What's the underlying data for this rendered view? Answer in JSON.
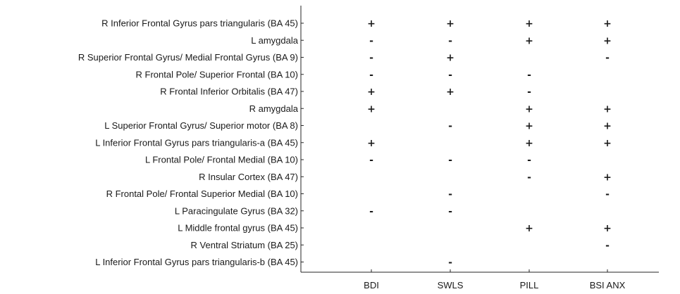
{
  "chart_data": {
    "type": "table",
    "title": "",
    "xlabel": "",
    "ylabel": "",
    "columns": [
      "BDI",
      "SWLS",
      "PILL",
      "BSI ANX"
    ],
    "rows": [
      "R Inferior Frontal Gyrus pars triangularis (BA 45)",
      "L amygdala",
      "R Superior Frontal Gyrus/ Medial Frontal Gyrus  (BA 9)",
      "R Frontal Pole/ Superior Frontal (BA 10)",
      "R Frontal Inferior Orbitalis (BA 47)",
      "R amygdala",
      "L Superior Frontal Gyrus/ Superior motor  (BA 8)",
      "L Inferior Frontal Gyrus pars triangularis-a (BA 45)",
      "L Frontal Pole/ Frontal Medial  (BA 10)",
      "R Insular Cortex (BA 47)",
      "R Frontal Pole/ Frontal Superior Medial (BA 10)",
      "L Paracingulate Gyrus (BA 32)",
      "L Middle frontal gyrus (BA 45)",
      "R Ventral Striatum (BA 25)",
      "L Inferior Frontal Gyrus pars triangularis-b (BA 45)"
    ],
    "cells": [
      [
        "+",
        "+",
        "+",
        "+"
      ],
      [
        "-",
        "-",
        "+",
        "+"
      ],
      [
        "-",
        "+",
        "",
        "-"
      ],
      [
        "-",
        "-",
        "-",
        ""
      ],
      [
        "+",
        "+",
        "-",
        ""
      ],
      [
        "+",
        "",
        "+",
        "+"
      ],
      [
        "",
        "-",
        "+",
        "+"
      ],
      [
        "+",
        "",
        "+",
        "+"
      ],
      [
        "-",
        "-",
        "-",
        ""
      ],
      [
        "",
        "",
        "-",
        "+"
      ],
      [
        "",
        "-",
        "",
        "-"
      ],
      [
        "-",
        "-",
        "",
        ""
      ],
      [
        "",
        "",
        "+",
        "+"
      ],
      [
        "",
        "",
        "",
        "-"
      ],
      [
        "",
        "-",
        "",
        ""
      ]
    ],
    "grid": false
  }
}
